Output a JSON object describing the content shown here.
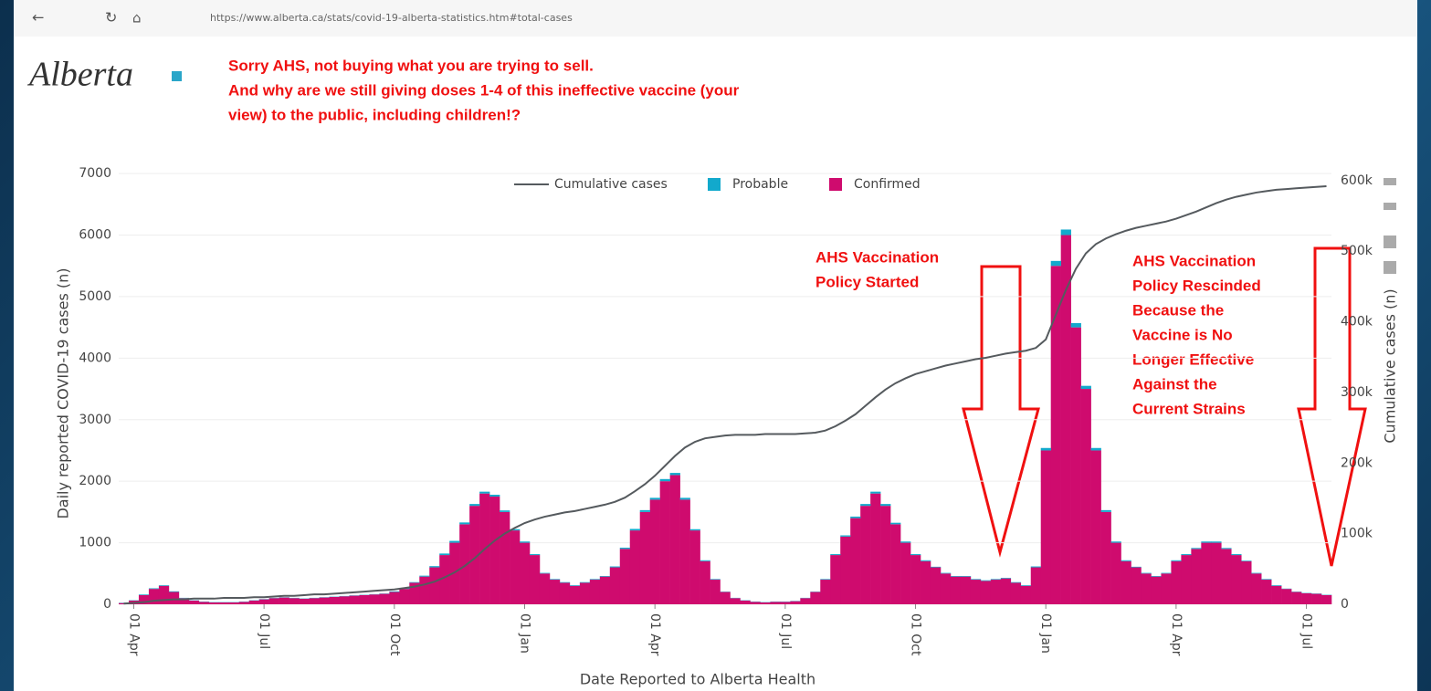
{
  "browser": {
    "url": "https://www.alberta.ca/stats/covid-19-alberta-statistics.htm#total-cases"
  },
  "header": {
    "logo": "Alberta"
  },
  "annotations": {
    "top": [
      "Sorry AHS, not buying what you are trying to sell.",
      "And why are we still giving doses 1-4 of this ineffective vaccine (your",
      "view) to the public, including children!?"
    ],
    "started": [
      "AHS Vaccination",
      "Policy Started"
    ],
    "rescinded": [
      "AHS Vaccination",
      "Policy Rescinded",
      "Because the",
      "Vaccine is No",
      "Longer Effective",
      "Against the",
      "Current Strains"
    ]
  },
  "chart_data": {
    "type": "bar",
    "stacked": true,
    "xlabel": "Date Reported to Alberta Health",
    "ylabel": "Daily reported COVID-19 cases (n)",
    "y2label": "Cumulative cases (n)",
    "categories": [
      null,
      "01 Apr",
      null,
      null,
      null,
      null,
      null,
      null,
      null,
      null,
      null,
      null,
      null,
      null,
      "01 Jul",
      null,
      null,
      null,
      null,
      null,
      null,
      null,
      null,
      null,
      null,
      null,
      null,
      "01 Oct",
      null,
      null,
      null,
      null,
      null,
      null,
      null,
      null,
      null,
      null,
      null,
      null,
      "01 Jan",
      null,
      null,
      null,
      null,
      null,
      null,
      null,
      null,
      null,
      null,
      null,
      null,
      "01 Apr",
      null,
      null,
      null,
      null,
      null,
      null,
      null,
      null,
      null,
      null,
      null,
      null,
      "01 Jul",
      null,
      null,
      null,
      null,
      null,
      null,
      null,
      null,
      null,
      null,
      null,
      null,
      "01 Oct",
      null,
      null,
      null,
      null,
      null,
      null,
      null,
      null,
      null,
      null,
      null,
      null,
      "01 Jan",
      null,
      null,
      null,
      null,
      null,
      null,
      null,
      null,
      null,
      null,
      null,
      null,
      "01 Apr",
      null,
      null,
      null,
      null,
      null,
      null,
      null,
      null,
      null,
      null,
      null,
      null,
      "01 Jul",
      null,
      null
    ],
    "series": [
      {
        "name": "Cumulative cases",
        "type": "line",
        "axis": "y2",
        "color": "#555a5e",
        "values": [
          1000,
          2000,
          3000,
          5000,
          6000,
          7000,
          7000,
          8000,
          8000,
          8000,
          9000,
          9000,
          9000,
          10000,
          10000,
          11000,
          12000,
          12000,
          13000,
          14000,
          14000,
          15000,
          16000,
          17000,
          18000,
          19000,
          20000,
          21000,
          23000,
          25000,
          28000,
          32000,
          38000,
          45000,
          54000,
          65000,
          78000,
          90000,
          100000,
          108000,
          115000,
          120000,
          124000,
          127000,
          130000,
          132000,
          135000,
          138000,
          141000,
          145000,
          151000,
          160000,
          170000,
          182000,
          196000,
          210000,
          222000,
          230000,
          235000,
          237000,
          239000,
          240000,
          240000,
          240000,
          241000,
          241000,
          241000,
          241000,
          242000,
          243000,
          246000,
          252000,
          260000,
          269000,
          281000,
          293000,
          304000,
          313000,
          320000,
          326000,
          330000,
          334000,
          338000,
          341000,
          344000,
          347000,
          349000,
          352000,
          355000,
          357000,
          359000,
          363000,
          375000,
          410000,
          445000,
          475000,
          497000,
          510000,
          518000,
          524000,
          529000,
          533000,
          536000,
          539000,
          542000,
          546000,
          551000,
          556000,
          562000,
          568000,
          573000,
          577000,
          580000,
          583000,
          585000,
          587000,
          588000,
          589000,
          590000,
          591000,
          592000
        ]
      },
      {
        "name": "Probable",
        "type": "bar",
        "color": "#12a9cc",
        "values": [
          5,
          5,
          10,
          10,
          10,
          10,
          5,
          5,
          5,
          5,
          5,
          5,
          5,
          5,
          5,
          5,
          5,
          5,
          5,
          5,
          5,
          5,
          5,
          5,
          5,
          5,
          5,
          10,
          10,
          10,
          15,
          20,
          25,
          30,
          30,
          30,
          30,
          30,
          25,
          20,
          20,
          15,
          10,
          10,
          10,
          10,
          10,
          10,
          10,
          15,
          20,
          25,
          30,
          30,
          35,
          35,
          30,
          20,
          15,
          10,
          5,
          5,
          5,
          5,
          5,
          5,
          5,
          5,
          5,
          5,
          10,
          15,
          20,
          25,
          30,
          30,
          30,
          25,
          20,
          15,
          15,
          10,
          10,
          10,
          10,
          10,
          10,
          10,
          10,
          10,
          10,
          15,
          40,
          80,
          90,
          70,
          50,
          40,
          30,
          20,
          15,
          10,
          10,
          10,
          10,
          15,
          15,
          15,
          20,
          20,
          15,
          15,
          10,
          10,
          10,
          10,
          5,
          5,
          5,
          5,
          5
        ]
      },
      {
        "name": "Confirmed",
        "type": "bar",
        "color": "#cf0b6e",
        "values": [
          20,
          60,
          150,
          250,
          300,
          200,
          100,
          60,
          40,
          30,
          30,
          30,
          40,
          60,
          80,
          100,
          110,
          100,
          90,
          100,
          110,
          120,
          130,
          140,
          150,
          160,
          170,
          200,
          250,
          350,
          450,
          600,
          800,
          1000,
          1300,
          1600,
          1800,
          1750,
          1500,
          1200,
          1000,
          800,
          500,
          400,
          350,
          300,
          350,
          400,
          450,
          600,
          900,
          1200,
          1500,
          1700,
          2000,
          2100,
          1700,
          1200,
          700,
          400,
          200,
          100,
          60,
          40,
          30,
          40,
          40,
          50,
          100,
          200,
          400,
          800,
          1100,
          1400,
          1600,
          1800,
          1600,
          1300,
          1000,
          800,
          700,
          600,
          500,
          450,
          450,
          400,
          380,
          400,
          420,
          350,
          300,
          600,
          2500,
          5500,
          6000,
          4500,
          3500,
          2500,
          1500,
          1000,
          700,
          600,
          500,
          450,
          500,
          700,
          800,
          900,
          1000,
          1000,
          900,
          800,
          700,
          500,
          400,
          300,
          250,
          200,
          180,
          170,
          150
        ]
      }
    ],
    "ylim": [
      0,
      7150
    ],
    "yticks": [
      0,
      1000,
      2000,
      3000,
      4000,
      5000,
      6000,
      7000
    ],
    "y2lim": [
      0,
      623000
    ],
    "y2ticks": [
      0,
      {
        "value": 100000,
        "label": "100k"
      },
      {
        "value": 200000,
        "label": "200k"
      },
      {
        "value": 300000,
        "label": "300k"
      },
      {
        "value": 400000,
        "label": "400k"
      },
      {
        "value": 500000,
        "label": "500k"
      },
      {
        "value": 600000,
        "label": "600k"
      }
    ],
    "grid": true
  }
}
